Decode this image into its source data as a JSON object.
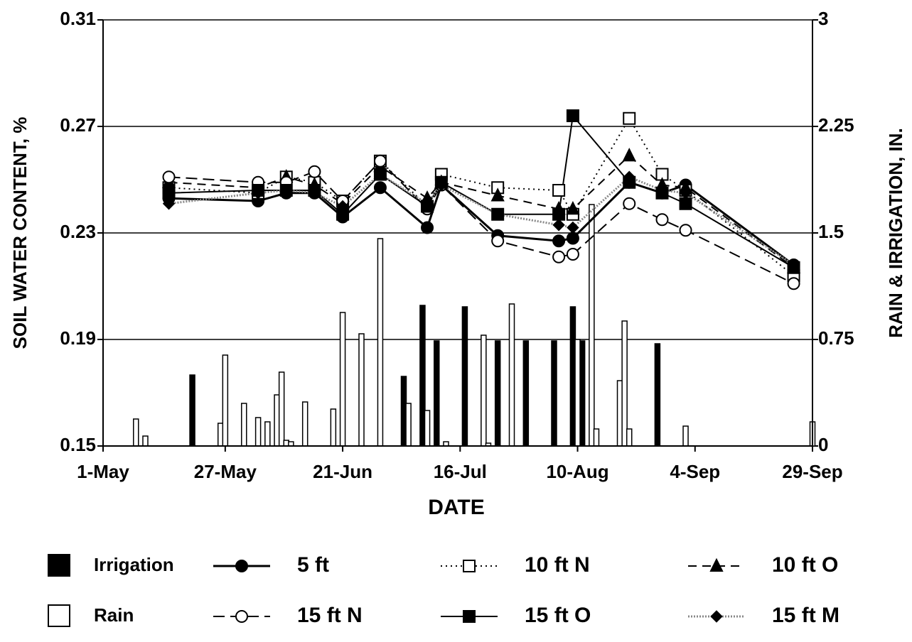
{
  "chart_data": {
    "type": "line",
    "xlabel": "DATE",
    "ylabel": "SOIL WATER CONTENT, %",
    "y2label": "RAIN & IRRIGATION, IN.",
    "x": [
      14,
      33,
      39,
      45,
      51,
      59,
      69,
      72,
      84,
      97,
      100,
      112,
      119,
      124,
      147
    ],
    "xlim": [
      0,
      151
    ],
    "xticks": [
      {
        "value": 0,
        "label": "1-May"
      },
      {
        "value": 26,
        "label": "27-May"
      },
      {
        "value": 51,
        "label": "21-Jun"
      },
      {
        "value": 76,
        "label": "16-Jul"
      },
      {
        "value": 101,
        "label": "10-Aug"
      },
      {
        "value": 126,
        "label": "4-Sep"
      },
      {
        "value": 151,
        "label": "29-Sep"
      }
    ],
    "ylim": [
      0.15,
      0.31
    ],
    "yticks": [
      0.15,
      0.19,
      0.23,
      0.27,
      0.31
    ],
    "y2lim": [
      0,
      3
    ],
    "y2ticks": [
      0,
      0.75,
      1.5,
      2.25,
      3
    ],
    "grid": true,
    "legend": "bottom",
    "series": [
      {
        "name": "Irrigation",
        "type": "bar",
        "axis": "y2",
        "color": "#000000",
        "x": [
          19,
          64,
          68,
          71,
          77,
          84,
          90,
          96,
          100,
          102,
          118
        ],
        "values": [
          0.5,
          0.49,
          0.99,
          0.74,
          0.98,
          0.74,
          0.74,
          0.74,
          0.98,
          0.74,
          0.72
        ]
      },
      {
        "name": "5 ft",
        "color": "#000000",
        "marker": "circle",
        "filled": true,
        "dash": "none",
        "width": 3,
        "values": [
          0.243,
          0.242,
          0.245,
          0.245,
          0.236,
          0.247,
          0.232,
          0.248,
          0.229,
          0.227,
          0.228,
          0.249,
          0.245,
          0.248,
          0.218
        ]
      },
      {
        "name": "10 ft N",
        "color": "#000000",
        "marker": "square",
        "filled": false,
        "dash": "2,5",
        "width": 2,
        "values": [
          0.247,
          0.245,
          0.251,
          0.249,
          0.242,
          0.257,
          0.24,
          0.252,
          0.247,
          0.246,
          0.237,
          0.273,
          0.252,
          0.246,
          0.214
        ]
      },
      {
        "name": "10 ft O",
        "color": "#000000",
        "marker": "triangle",
        "filled": true,
        "dash": "12,8",
        "width": 2,
        "values": [
          0.249,
          0.247,
          0.251,
          0.248,
          0.241,
          0.255,
          0.243,
          0.249,
          0.244,
          0.239,
          0.239,
          0.259,
          0.248,
          0.247,
          0.217
        ]
      },
      {
        "name": "Rain",
        "type": "bar",
        "axis": "y2",
        "color": "#ffffff",
        "x": [
          7,
          9,
          25,
          26,
          30,
          33,
          35,
          37,
          38,
          39,
          40,
          43,
          49,
          51,
          55,
          59,
          65,
          69,
          73,
          81,
          82,
          87,
          101,
          104,
          105,
          110,
          111,
          112,
          124,
          151
        ],
        "values": [
          0.19,
          0.07,
          0.16,
          0.64,
          0.3,
          0.2,
          0.17,
          0.36,
          0.52,
          0.04,
          0.03,
          0.31,
          0.26,
          0.94,
          0.79,
          1.46,
          0.3,
          0.25,
          0.03,
          0.78,
          0.02,
          1.0,
          0.75,
          1.7,
          0.12,
          0.46,
          0.88,
          0.12,
          0.14,
          0.17
        ]
      },
      {
        "name": "15 ft N",
        "color": "#000000",
        "marker": "circle",
        "filled": false,
        "dash": "16,8",
        "width": 2,
        "values": [
          0.251,
          0.249,
          0.249,
          0.253,
          0.242,
          0.257,
          0.239,
          0.248,
          0.227,
          0.221,
          0.222,
          0.241,
          0.235,
          0.231,
          0.211
        ]
      },
      {
        "name": "15 ft O",
        "color": "#000000",
        "marker": "square",
        "filled": true,
        "dash": "none",
        "width": 2,
        "values": [
          0.245,
          0.246,
          0.246,
          0.246,
          0.237,
          0.252,
          0.24,
          0.249,
          0.237,
          0.237,
          0.274,
          0.249,
          0.245,
          0.241,
          0.217
        ]
      },
      {
        "name": "15 ft M",
        "color": "#888888",
        "marker": "diamond",
        "filled": true,
        "dash": "2,2",
        "width": 3,
        "values": [
          0.241,
          0.245,
          0.246,
          0.245,
          0.24,
          0.252,
          0.241,
          0.248,
          0.237,
          0.233,
          0.232,
          0.251,
          0.246,
          0.245,
          0.218
        ]
      }
    ]
  }
}
